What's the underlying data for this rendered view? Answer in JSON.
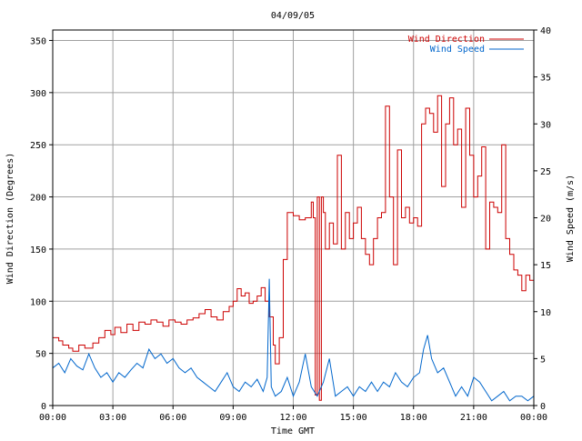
{
  "chart_data": {
    "type": "line",
    "title": "04/09/05",
    "xlabel": "Time GMT",
    "ylabel": "Wind Direction (Degrees)",
    "y2label": "Wind Speed (m/s)",
    "x_tick_labels": [
      "00:00",
      "03:00",
      "06:00",
      "09:00",
      "12:00",
      "15:00",
      "18:00",
      "21:00",
      "00:00"
    ],
    "x_ticks_hours": [
      0,
      3,
      6,
      9,
      12,
      15,
      18,
      21,
      24
    ],
    "xlim_hours": [
      0,
      24
    ],
    "ylim": [
      0,
      360
    ],
    "y_ticks": [
      0,
      50,
      100,
      150,
      200,
      250,
      300,
      350
    ],
    "y2lim": [
      0,
      40
    ],
    "y2_ticks": [
      0,
      5,
      10,
      15,
      20,
      25,
      30,
      35,
      40
    ],
    "grid": true,
    "legend_position": "top-right",
    "series": [
      {
        "name": "Wind Direction",
        "axis": "left",
        "color": "#cc0000",
        "x_hours": [
          0,
          0.3,
          0.5,
          0.8,
          1.0,
          1.3,
          1.6,
          2.0,
          2.3,
          2.6,
          2.9,
          3.1,
          3.4,
          3.7,
          4.0,
          4.3,
          4.6,
          4.9,
          5.2,
          5.5,
          5.8,
          6.1,
          6.4,
          6.7,
          7.0,
          7.3,
          7.6,
          7.9,
          8.2,
          8.5,
          8.8,
          9.0,
          9.2,
          9.4,
          9.6,
          9.8,
          10.0,
          10.2,
          10.4,
          10.6,
          10.8,
          11.0,
          11.1,
          11.3,
          11.5,
          11.7,
          12.0,
          12.3,
          12.6,
          12.9,
          13.0,
          13.1,
          13.2,
          13.3,
          13.4,
          13.5,
          13.6,
          13.8,
          14.0,
          14.2,
          14.4,
          14.6,
          14.8,
          15.0,
          15.2,
          15.4,
          15.6,
          15.8,
          16.0,
          16.2,
          16.4,
          16.6,
          16.8,
          17.0,
          17.2,
          17.4,
          17.6,
          17.8,
          18.0,
          18.2,
          18.4,
          18.6,
          18.8,
          19.0,
          19.2,
          19.4,
          19.6,
          19.8,
          20.0,
          20.2,
          20.4,
          20.6,
          20.8,
          21.0,
          21.2,
          21.4,
          21.6,
          21.8,
          22.0,
          22.2,
          22.4,
          22.6,
          22.8,
          23.0,
          23.2,
          23.4,
          23.6,
          23.8,
          24.0
        ],
        "values": [
          65,
          62,
          58,
          55,
          52,
          58,
          55,
          60,
          65,
          72,
          68,
          75,
          70,
          78,
          72,
          80,
          78,
          82,
          80,
          76,
          82,
          80,
          78,
          82,
          84,
          88,
          92,
          85,
          82,
          90,
          95,
          100,
          112,
          105,
          108,
          98,
          100,
          105,
          113,
          100,
          85,
          58,
          40,
          65,
          140,
          185,
          182,
          178,
          180,
          195,
          180,
          10,
          200,
          5,
          200,
          185,
          150,
          175,
          155,
          240,
          150,
          185,
          160,
          175,
          190,
          160,
          145,
          135,
          160,
          180,
          185,
          287,
          200,
          135,
          245,
          180,
          190,
          175,
          180,
          172,
          270,
          285,
          280,
          262,
          297,
          210,
          270,
          295,
          250,
          265,
          190,
          285,
          240,
          200,
          220,
          248,
          150,
          195,
          190,
          185,
          250,
          160,
          145,
          130,
          125,
          110,
          125,
          120,
          115
        ]
      },
      {
        "name": "Wind Speed",
        "axis": "right",
        "color": "#0066cc",
        "x_hours": [
          0,
          0.3,
          0.6,
          0.9,
          1.2,
          1.5,
          1.8,
          2.1,
          2.4,
          2.7,
          3.0,
          3.3,
          3.6,
          3.9,
          4.2,
          4.5,
          4.8,
          5.1,
          5.4,
          5.7,
          6.0,
          6.3,
          6.6,
          6.9,
          7.2,
          7.5,
          7.8,
          8.1,
          8.4,
          8.7,
          9.0,
          9.3,
          9.6,
          9.9,
          10.2,
          10.5,
          10.7,
          10.8,
          10.9,
          11.1,
          11.4,
          11.7,
          12.0,
          12.3,
          12.6,
          12.9,
          13.2,
          13.5,
          13.8,
          14.1,
          14.4,
          14.7,
          15.0,
          15.3,
          15.6,
          15.9,
          16.2,
          16.5,
          16.8,
          17.1,
          17.4,
          17.7,
          18.0,
          18.3,
          18.5,
          18.7,
          18.9,
          19.2,
          19.5,
          19.8,
          20.1,
          20.4,
          20.7,
          21.0,
          21.3,
          21.6,
          21.9,
          22.2,
          22.5,
          22.8,
          23.1,
          23.4,
          23.7,
          24.0
        ],
        "values": [
          4.0,
          4.5,
          3.5,
          5.0,
          4.2,
          3.8,
          5.5,
          4.0,
          3.0,
          3.5,
          2.5,
          3.5,
          3.0,
          3.8,
          4.5,
          4.0,
          6.0,
          5.0,
          5.5,
          4.5,
          5.0,
          4.0,
          3.5,
          4.0,
          3.0,
          2.5,
          2.0,
          1.5,
          2.5,
          3.5,
          2.0,
          1.5,
          2.5,
          2.0,
          2.8,
          1.5,
          3.0,
          13.5,
          2.0,
          1.0,
          1.5,
          3.0,
          1.0,
          2.5,
          5.5,
          2.0,
          1.0,
          2.5,
          5.0,
          1.0,
          1.5,
          2.0,
          1.0,
          2.0,
          1.5,
          2.5,
          1.5,
          2.5,
          2.0,
          3.5,
          2.5,
          2.0,
          3.0,
          3.5,
          6.0,
          7.5,
          5.0,
          3.5,
          4.0,
          2.5,
          1.0,
          2.0,
          1.0,
          3.0,
          2.5,
          1.5,
          0.5,
          1.0,
          1.5,
          0.5,
          1.0,
          1.0,
          0.5,
          1.0
        ]
      }
    ]
  }
}
